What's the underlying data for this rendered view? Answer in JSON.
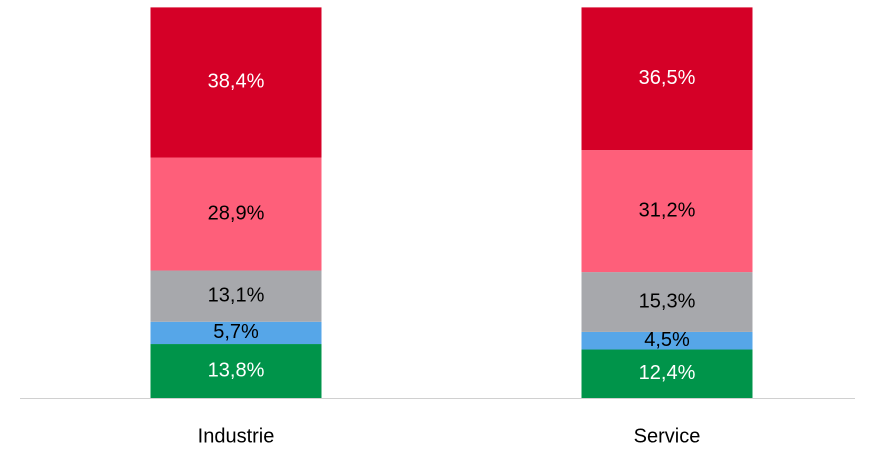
{
  "chart_data": {
    "type": "stacked-bar",
    "categories": [
      "Industrie",
      "Service"
    ],
    "ylim": [
      0,
      100
    ],
    "series": [
      {
        "color": "#00944a",
        "label_color": "#ffffff",
        "values": [
          13.8,
          12.4
        ],
        "value_labels": [
          "13,8%",
          "12,4%"
        ]
      },
      {
        "color": "#56a6e8",
        "label_color": "#000000",
        "values": [
          5.7,
          4.5
        ],
        "value_labels": [
          "5,7%",
          "4,5%"
        ]
      },
      {
        "color": "#a7a8ac",
        "label_color": "#000000",
        "values": [
          13.1,
          15.3
        ],
        "value_labels": [
          "13,1%",
          "15,3%"
        ]
      },
      {
        "color": "#fe5f7a",
        "label_color": "#000000",
        "values": [
          28.9,
          31.2
        ],
        "value_labels": [
          "28,9%",
          "31,2%"
        ]
      },
      {
        "color": "#d50027",
        "label_color": "#ffffff",
        "values": [
          38.4,
          36.5
        ],
        "value_labels": [
          "38,4%",
          "36,5%"
        ]
      }
    ]
  }
}
